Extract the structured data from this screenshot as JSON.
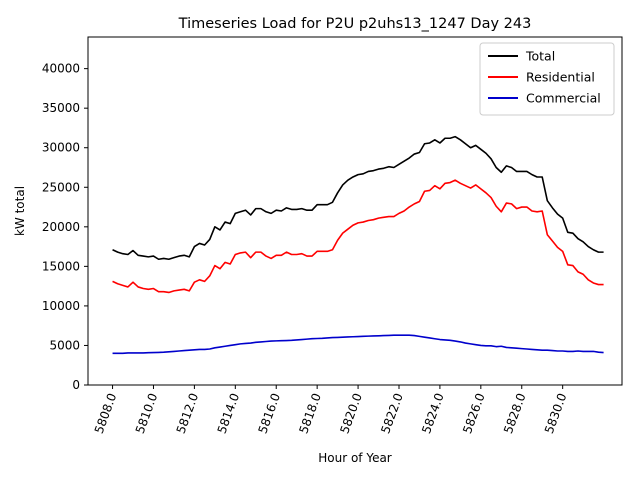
{
  "chart_data": {
    "type": "line",
    "title": "Timeseries Load for P2U p2uhs13_1247  Day 243",
    "xlabel": "Hour of Year",
    "ylabel": "kW total",
    "xlim": [
      5806.8,
      5832.9
    ],
    "ylim": [
      0,
      44000
    ],
    "x_ticks": [
      5808,
      5810,
      5812,
      5814,
      5816,
      5818,
      5820,
      5822,
      5824,
      5826,
      5828,
      5830
    ],
    "x_tick_labels": [
      "5808.0",
      "5810.0",
      "5812.0",
      "5814.0",
      "5816.0",
      "5818.0",
      "5820.0",
      "5822.0",
      "5824.0",
      "5826.0",
      "5828.0",
      "5830.0"
    ],
    "y_ticks": [
      0,
      5000,
      10000,
      15000,
      20000,
      25000,
      30000,
      35000,
      40000
    ],
    "y_tick_labels": [
      "0",
      "5000",
      "10000",
      "15000",
      "20000",
      "25000",
      "30000",
      "35000",
      "40000"
    ],
    "x_start": 5808.0,
    "x_step": 0.25,
    "legend_position": "upper right",
    "series": [
      {
        "name": "Total",
        "color": "#000000",
        "values": [
          17100,
          16800,
          16600,
          16500,
          17000,
          16400,
          16300,
          16200,
          16300,
          15900,
          16000,
          15900,
          16100,
          16300,
          16400,
          16200,
          17500,
          17900,
          17700,
          18400,
          20000,
          19600,
          20600,
          20400,
          21700,
          21900,
          22100,
          21500,
          22300,
          22300,
          21900,
          21700,
          22100,
          22000,
          22400,
          22200,
          22200,
          22300,
          22100,
          22100,
          22800,
          22800,
          22800,
          23100,
          24300,
          25300,
          25900,
          26300,
          26600,
          26700,
          27000,
          27100,
          27300,
          27400,
          27600,
          27500,
          27900,
          28300,
          28700,
          29200,
          29400,
          30500,
          30600,
          31000,
          30600,
          31200,
          31200,
          31400,
          31000,
          30500,
          30000,
          30300,
          29800,
          29300,
          28600,
          27500,
          26900,
          27700,
          27500,
          27000,
          27000,
          27000,
          26600,
          26300,
          26300,
          23300,
          22400,
          21600,
          21100,
          19300,
          19200,
          18500,
          18100,
          17500,
          17100,
          16800,
          16800
        ]
      },
      {
        "name": "Residential",
        "color": "#ff0000",
        "values": [
          13100,
          12800,
          12600,
          12400,
          13000,
          12400,
          12200,
          12100,
          12200,
          11800,
          11800,
          11700,
          11900,
          12000,
          12100,
          11900,
          13000,
          13300,
          13100,
          13800,
          15100,
          14700,
          15500,
          15300,
          16500,
          16700,
          16800,
          16100,
          16800,
          16800,
          16300,
          16000,
          16400,
          16400,
          16800,
          16500,
          16500,
          16600,
          16300,
          16300,
          16900,
          16900,
          16900,
          17100,
          18300,
          19200,
          19700,
          20200,
          20500,
          20600,
          20800,
          20900,
          21100,
          21200,
          21300,
          21300,
          21700,
          22000,
          22500,
          22900,
          23200,
          24500,
          24600,
          25200,
          24800,
          25500,
          25600,
          25900,
          25500,
          25200,
          24900,
          25300,
          24800,
          24300,
          23700,
          22600,
          21900,
          23000,
          22900,
          22300,
          22500,
          22500,
          22000,
          21900,
          22000,
          19000,
          18200,
          17400,
          16900,
          15200,
          15100,
          14300,
          14000,
          13300,
          12900,
          12700,
          12700
        ]
      },
      {
        "name": "Commercial",
        "color": "#0000cc",
        "values": [
          4000,
          4000,
          4000,
          4050,
          4050,
          4050,
          4060,
          4080,
          4100,
          4120,
          4150,
          4200,
          4250,
          4300,
          4350,
          4400,
          4450,
          4500,
          4500,
          4550,
          4700,
          4800,
          4900,
          5000,
          5100,
          5200,
          5250,
          5300,
          5400,
          5450,
          5500,
          5550,
          5580,
          5600,
          5620,
          5650,
          5700,
          5750,
          5800,
          5850,
          5880,
          5900,
          5950,
          6000,
          6020,
          6050,
          6080,
          6100,
          6120,
          6150,
          6180,
          6200,
          6220,
          6250,
          6270,
          6300,
          6300,
          6300,
          6300,
          6250,
          6150,
          6050,
          5950,
          5850,
          5750,
          5700,
          5650,
          5550,
          5450,
          5300,
          5200,
          5100,
          5000,
          4950,
          4950,
          4850,
          4900,
          4750,
          4700,
          4650,
          4600,
          4550,
          4500,
          4450,
          4400,
          4400,
          4350,
          4300,
          4300,
          4250,
          4250,
          4300,
          4250,
          4250,
          4250,
          4150,
          4100
        ]
      }
    ]
  }
}
